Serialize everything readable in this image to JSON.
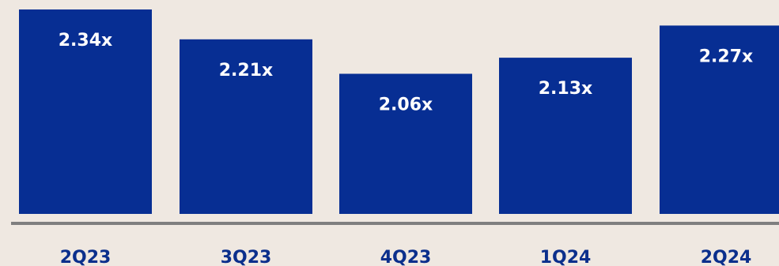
{
  "colors": {
    "background": "#efe8e1",
    "bar": "#072e93",
    "axis": "#7f7f7f",
    "tick_label": "#0b2f8c",
    "bar_label": "#ffffff"
  },
  "chart_data": {
    "type": "bar",
    "categories": [
      "2Q23",
      "3Q23",
      "4Q23",
      "1Q24",
      "2Q24"
    ],
    "values": [
      2.34,
      2.21,
      2.06,
      2.13,
      2.27
    ],
    "data_labels": [
      "2.34x",
      "2.21x",
      "2.06x",
      "2.13x",
      "2.27x"
    ],
    "title": "",
    "xlabel": "",
    "ylabel": "",
    "grid": false,
    "legend": "none"
  }
}
